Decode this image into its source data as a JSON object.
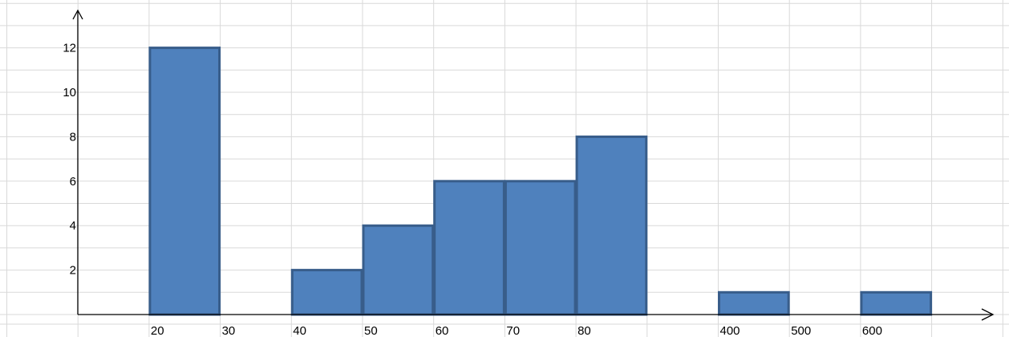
{
  "chart_data": {
    "type": "bar",
    "title": "",
    "xlabel": "",
    "ylabel": "",
    "x_tick_labels": [
      "20",
      "30",
      "40",
      "50",
      "60",
      "70",
      "80",
      "400",
      "500",
      "600"
    ],
    "y_tick_labels": [
      "2",
      "4",
      "6",
      "8",
      "10",
      "12"
    ],
    "ylim": [
      0,
      12.5
    ],
    "bars": [
      {
        "from": "20",
        "to": "30",
        "value": 12
      },
      {
        "from": "40",
        "to": "50",
        "value": 2
      },
      {
        "from": "50",
        "to": "60",
        "value": 4
      },
      {
        "from": "60",
        "to": "70",
        "value": 6
      },
      {
        "from": "70",
        "to": "80",
        "value": 6
      },
      {
        "from": "80",
        "to": "",
        "value": 8
      },
      {
        "from": "400",
        "to": "500",
        "value": 1
      },
      {
        "from": "600",
        "to": "",
        "value": 1
      }
    ],
    "grid": true,
    "colors": {
      "bar_fill": "#4f81bd",
      "bar_edge": "#385d8a",
      "grid": "#d9d9d9",
      "axis": "#000000"
    }
  }
}
